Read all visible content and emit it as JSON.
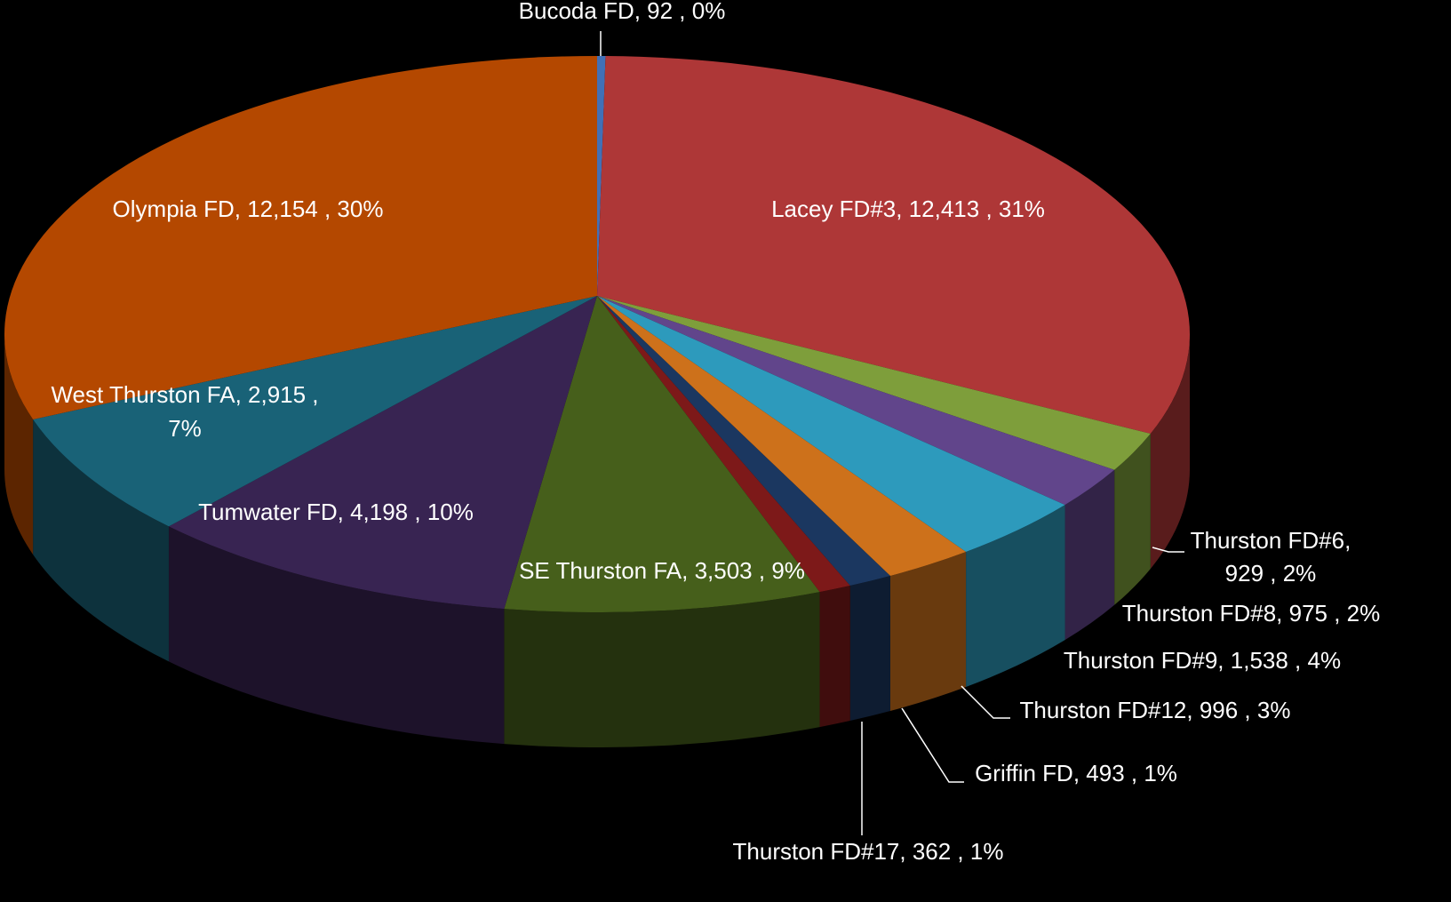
{
  "chart_data": {
    "type": "pie3d",
    "categories": [
      "Bucoda FD",
      "Lacey FD#3",
      "Thurston FD#6",
      "Thurston FD#8",
      "Thurston FD#9",
      "Thurston FD#12",
      "Griffin FD",
      "Thurston FD#17",
      "SE Thurston FA",
      "Tumwater FD",
      "West Thurston FA",
      "Olympia FD"
    ],
    "values": [
      92,
      12413,
      929,
      975,
      1538,
      996,
      493,
      362,
      3503,
      4198,
      2915,
      12154
    ],
    "value_labels": [
      "Bucoda FD,  92 , 0%",
      "Lacey FD#3,  12,413 , 31%",
      [
        "Thurston FD#6,",
        "929 , 2%"
      ],
      "Thurston FD#8,  975 , 2%",
      "Thurston FD#9,  1,538 , 4%",
      "Thurston FD#12,  996 , 3%",
      "Griffin FD,  493 , 1%",
      "Thurston FD#17,  362 , 1%",
      "SE Thurston FA,  3,503 , 9%",
      "Tumwater FD,  4,198 , 10%",
      [
        "West Thurston FA,  2,915 ,",
        "7%"
      ],
      "Olympia FD,  12,154 , 30%"
    ],
    "colors": [
      "#4a7fd0",
      "#c63e3e",
      "#8fb443",
      "#6e4e9e",
      "#33afd6",
      "#e9801f",
      "#1f3f6d",
      "#8e1c1c",
      "#4f6c1f",
      "#40295d",
      "#1c6f87",
      "#cc5200"
    ]
  }
}
